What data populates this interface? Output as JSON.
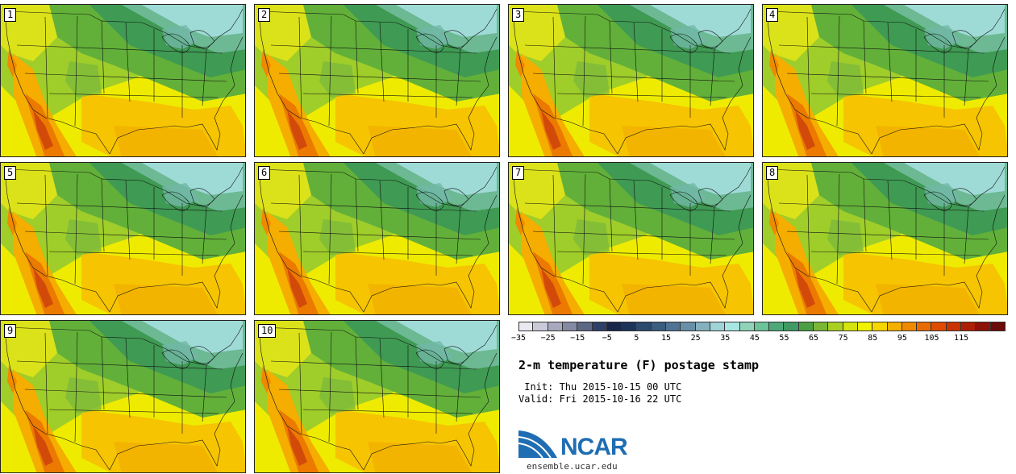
{
  "panels": [
    {
      "label": "1"
    },
    {
      "label": "2"
    },
    {
      "label": "3"
    },
    {
      "label": "4"
    },
    {
      "label": "5"
    },
    {
      "label": "6"
    },
    {
      "label": "7"
    },
    {
      "label": "8"
    },
    {
      "label": "9"
    },
    {
      "label": "10"
    }
  ],
  "colorbar": {
    "colors": [
      "#e9e9f2",
      "#c9c9d8",
      "#a8a9be",
      "#858aa3",
      "#5d6885",
      "#2f4068",
      "#18264a",
      "#1d3358",
      "#2c4a6e",
      "#3a5d80",
      "#4f7393",
      "#6a90a8",
      "#85b1bf",
      "#9fd3d6",
      "#a7e6e3",
      "#8fd3b9",
      "#6cc39a",
      "#4ea87a",
      "#3f9a63",
      "#4c9f45",
      "#7bb734",
      "#a9cf21",
      "#d4e40e",
      "#f1f100",
      "#f4d600",
      "#f3b000",
      "#ef8a00",
      "#e96a00",
      "#df4b00",
      "#c93300",
      "#ad1f05",
      "#8c1208",
      "#6b0a08"
    ],
    "ticks": [
      "−35",
      "−25",
      "−15",
      "−5",
      "5",
      "15",
      "25",
      "35",
      "45",
      "55",
      "65",
      "75",
      "85",
      "95",
      "105",
      "115"
    ]
  },
  "title": "2-m temperature (F) postage stamp",
  "init": " Init: Thu 2015-10-15 00 UTC",
  "valid": "Valid: Fri 2015-10-16 22 UTC",
  "logo": {
    "wordmark": "NCAR",
    "url": "ensemble.ucar.edu"
  }
}
